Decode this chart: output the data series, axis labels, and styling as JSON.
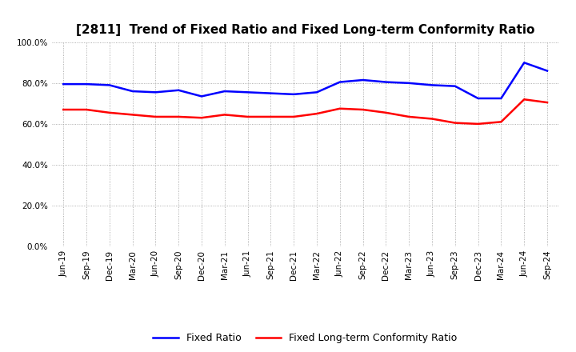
{
  "title": "[2811]  Trend of Fixed Ratio and Fixed Long-term Conformity Ratio",
  "x_labels": [
    "Jun-19",
    "Sep-19",
    "Dec-19",
    "Mar-20",
    "Jun-20",
    "Sep-20",
    "Dec-20",
    "Mar-21",
    "Jun-21",
    "Sep-21",
    "Dec-21",
    "Mar-22",
    "Jun-22",
    "Sep-22",
    "Dec-22",
    "Mar-23",
    "Jun-23",
    "Sep-23",
    "Dec-23",
    "Mar-24",
    "Jun-24",
    "Sep-24"
  ],
  "fixed_ratio": [
    79.5,
    79.5,
    79.0,
    76.0,
    75.5,
    76.5,
    73.5,
    76.0,
    75.5,
    75.0,
    74.5,
    75.5,
    80.5,
    81.5,
    80.5,
    80.0,
    79.0,
    78.5,
    72.5,
    72.5,
    90.0,
    86.0
  ],
  "fixed_lt_ratio": [
    67.0,
    67.0,
    65.5,
    64.5,
    63.5,
    63.5,
    63.0,
    64.5,
    63.5,
    63.5,
    63.5,
    65.0,
    67.5,
    67.0,
    65.5,
    63.5,
    62.5,
    60.5,
    60.0,
    61.0,
    72.0,
    70.5
  ],
  "fixed_ratio_color": "#0000FF",
  "fixed_lt_ratio_color": "#FF0000",
  "ylim": [
    0,
    100
  ],
  "yticks": [
    0,
    20,
    40,
    60,
    80,
    100
  ],
  "background_color": "#FFFFFF",
  "plot_bg_color": "#FFFFFF",
  "grid_color": "#999999",
  "legend_fixed": "Fixed Ratio",
  "legend_fixed_lt": "Fixed Long-term Conformity Ratio",
  "line_width": 1.8,
  "title_fontsize": 11,
  "tick_fontsize": 7.5,
  "legend_fontsize": 9
}
